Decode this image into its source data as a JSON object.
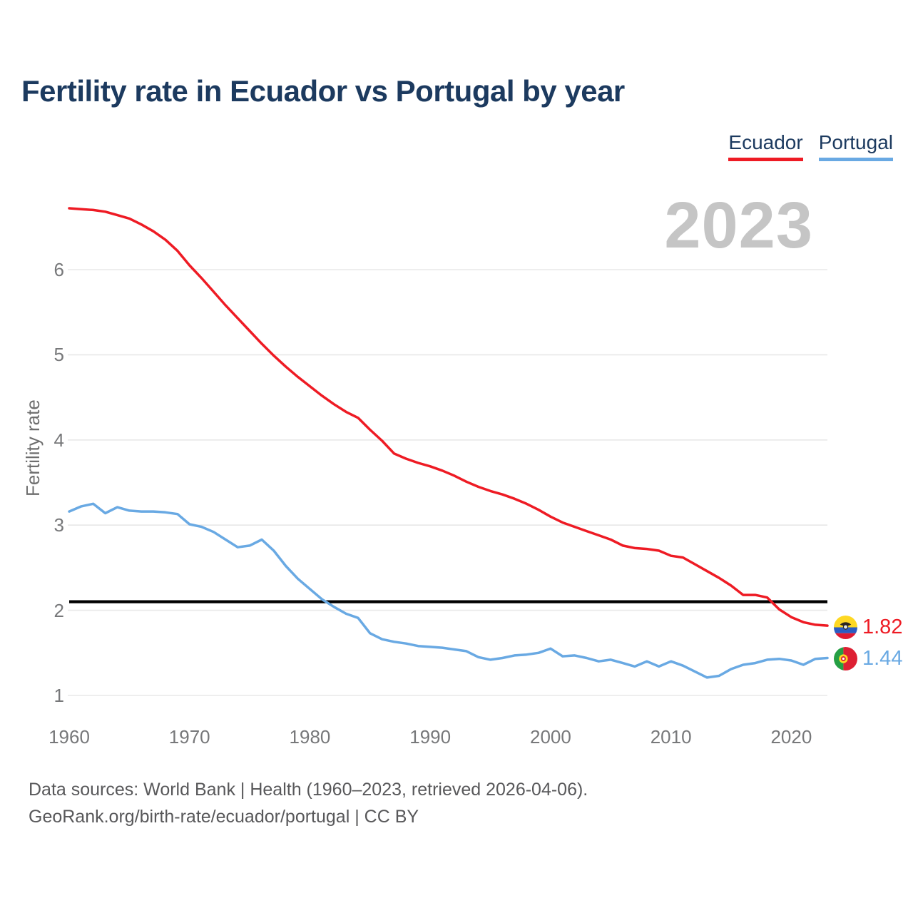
{
  "title": "Fertility rate in Ecuador vs Portugal by year",
  "legend": {
    "items": [
      {
        "label": "Ecuador",
        "color": "#ee1b24"
      },
      {
        "label": "Portugal",
        "color": "#69a9e3"
      }
    ]
  },
  "watermark": "2023",
  "end_labels": {
    "ecuador": {
      "value": "1.82",
      "flag": "ecuador-flag",
      "color": "#ee1b24"
    },
    "portugal": {
      "value": "1.44",
      "flag": "portugal-flag",
      "color": "#69a9e3"
    }
  },
  "footer": {
    "line1": "Data sources: World Bank | Health (1960–2023, retrieved 2026-04-06).",
    "line2": "GeoRank.org/birth-rate/ecuador/portugal | CC BY"
  },
  "chart_data": {
    "type": "line",
    "title": "Fertility rate in Ecuador vs Portugal by year",
    "xlabel": "",
    "ylabel": "Fertility rate",
    "grid": true,
    "legend_position": "top-right",
    "ylim": [
      0.95,
      6.9
    ],
    "yticks": [
      1,
      2,
      3,
      4,
      5,
      6
    ],
    "xticks": [
      1960,
      1970,
      1980,
      1990,
      2000,
      2010,
      2020
    ],
    "reference_line": {
      "value": 2.1,
      "color": "#000000"
    },
    "x": [
      1960,
      1961,
      1962,
      1963,
      1964,
      1965,
      1966,
      1967,
      1968,
      1969,
      1970,
      1971,
      1972,
      1973,
      1974,
      1975,
      1976,
      1977,
      1978,
      1979,
      1980,
      1981,
      1982,
      1983,
      1984,
      1985,
      1986,
      1987,
      1988,
      1989,
      1990,
      1991,
      1992,
      1993,
      1994,
      1995,
      1996,
      1997,
      1998,
      1999,
      2000,
      2001,
      2002,
      2003,
      2004,
      2005,
      2006,
      2007,
      2008,
      2009,
      2010,
      2011,
      2012,
      2013,
      2014,
      2015,
      2016,
      2017,
      2018,
      2019,
      2020,
      2021,
      2022,
      2023
    ],
    "series": [
      {
        "name": "Ecuador",
        "color": "#ee1b24",
        "values": [
          6.72,
          6.71,
          6.7,
          6.68,
          6.64,
          6.6,
          6.53,
          6.45,
          6.35,
          6.22,
          6.05,
          5.9,
          5.74,
          5.58,
          5.43,
          5.28,
          5.13,
          4.99,
          4.86,
          4.74,
          4.63,
          4.52,
          4.42,
          4.33,
          4.26,
          4.12,
          3.99,
          3.84,
          3.78,
          3.73,
          3.69,
          3.64,
          3.58,
          3.51,
          3.45,
          3.4,
          3.36,
          3.31,
          3.25,
          3.18,
          3.1,
          3.03,
          2.98,
          2.93,
          2.88,
          2.83,
          2.76,
          2.73,
          2.72,
          2.7,
          2.64,
          2.62,
          2.54,
          2.46,
          2.38,
          2.29,
          2.18,
          2.18,
          2.15,
          2.01,
          1.92,
          1.86,
          1.83,
          1.82
        ]
      },
      {
        "name": "Portugal",
        "color": "#69a9e3",
        "values": [
          3.16,
          3.22,
          3.25,
          3.14,
          3.21,
          3.17,
          3.16,
          3.16,
          3.15,
          3.13,
          3.01,
          2.98,
          2.92,
          2.83,
          2.74,
          2.76,
          2.83,
          2.7,
          2.52,
          2.37,
          2.25,
          2.13,
          2.04,
          1.96,
          1.91,
          1.73,
          1.66,
          1.63,
          1.61,
          1.58,
          1.57,
          1.56,
          1.54,
          1.52,
          1.45,
          1.42,
          1.44,
          1.47,
          1.48,
          1.5,
          1.55,
          1.46,
          1.47,
          1.44,
          1.4,
          1.42,
          1.38,
          1.34,
          1.4,
          1.34,
          1.4,
          1.35,
          1.28,
          1.21,
          1.23,
          1.31,
          1.36,
          1.38,
          1.42,
          1.43,
          1.41,
          1.36,
          1.43,
          1.44
        ]
      }
    ]
  }
}
